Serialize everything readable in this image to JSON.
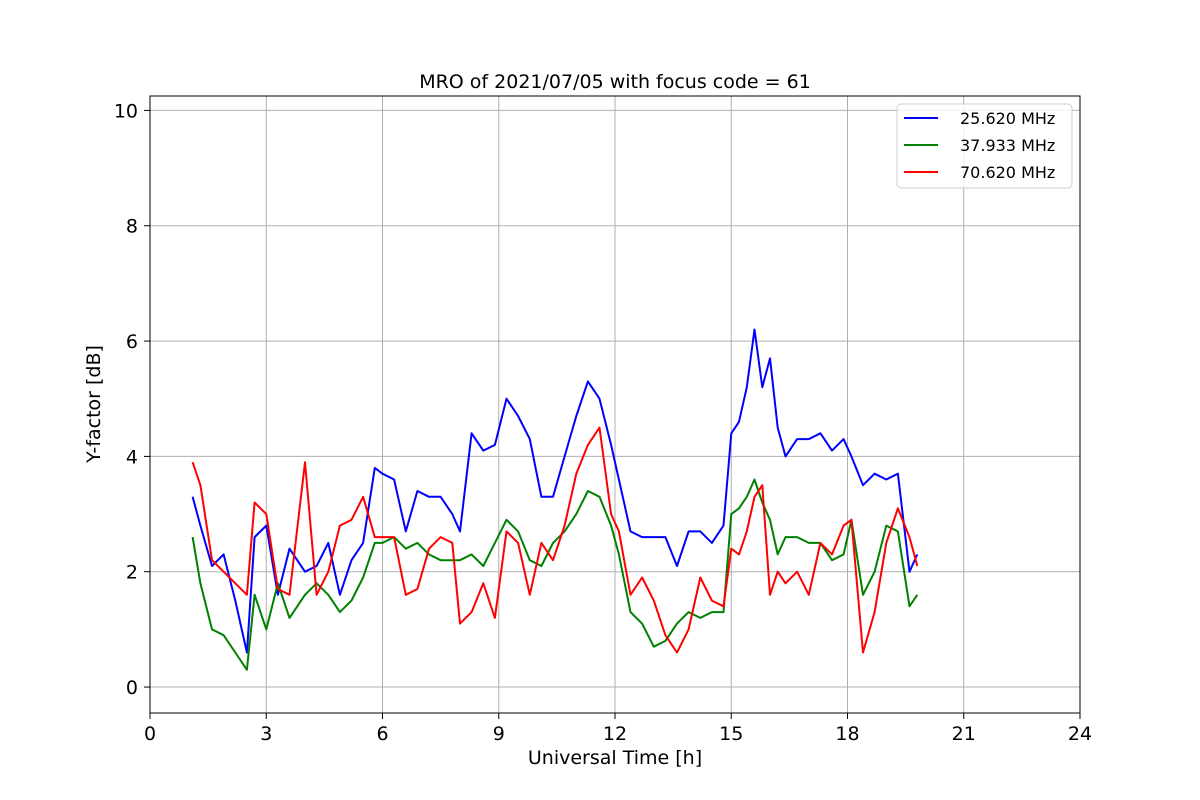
{
  "chart_data": {
    "type": "line",
    "title": "MRO of 2021/07/05 with focus code = 61",
    "xlabel": "Universal Time [h]",
    "ylabel": "Y-factor [dB]",
    "xlim": [
      0,
      24
    ],
    "ylim": [
      -0.45,
      10.25
    ],
    "xticks": [
      0,
      3,
      6,
      9,
      12,
      15,
      18,
      21,
      24
    ],
    "yticks": [
      0,
      2,
      4,
      6,
      8,
      10
    ],
    "grid": true,
    "legend_position": "top-right",
    "series": [
      {
        "name": "25.620 MHz",
        "color": "#0000ff",
        "x": [
          1.1,
          1.3,
          1.6,
          1.9,
          2.2,
          2.5,
          2.7,
          3.0,
          3.3,
          3.6,
          4.0,
          4.3,
          4.6,
          4.9,
          5.2,
          5.5,
          5.8,
          6.0,
          6.3,
          6.6,
          6.9,
          7.2,
          7.5,
          7.8,
          8.0,
          8.3,
          8.6,
          8.9,
          9.2,
          9.5,
          9.8,
          10.1,
          10.4,
          10.7,
          11.0,
          11.3,
          11.6,
          11.9,
          12.1,
          12.4,
          12.7,
          13.0,
          13.3,
          13.6,
          13.9,
          14.2,
          14.5,
          14.8,
          15.0,
          15.2,
          15.4,
          15.6,
          15.8,
          16.0,
          16.2,
          16.4,
          16.7,
          17.0,
          17.3,
          17.6,
          17.9,
          18.1,
          18.4,
          18.7,
          19.0,
          19.3,
          19.6,
          19.8
        ],
        "values": [
          3.3,
          2.8,
          2.1,
          2.3,
          1.5,
          0.6,
          2.6,
          2.8,
          1.6,
          2.4,
          2.0,
          2.1,
          2.5,
          1.6,
          2.2,
          2.5,
          3.8,
          3.7,
          3.6,
          2.7,
          3.4,
          3.3,
          3.3,
          3.0,
          2.7,
          4.4,
          4.1,
          4.2,
          5.0,
          4.7,
          4.3,
          3.3,
          3.3,
          4.0,
          4.7,
          5.3,
          5.0,
          4.2,
          3.6,
          2.7,
          2.6,
          2.6,
          2.6,
          2.1,
          2.7,
          2.7,
          2.5,
          2.8,
          4.4,
          4.6,
          5.2,
          6.2,
          5.2,
          5.7,
          4.5,
          4.0,
          4.3,
          4.3,
          4.4,
          4.1,
          4.3,
          4.0,
          3.5,
          3.7,
          3.6,
          3.7,
          2.0,
          2.3
        ]
      },
      {
        "name": "37.933 MHz",
        "color": "#008000",
        "x": [
          1.1,
          1.3,
          1.6,
          1.9,
          2.2,
          2.5,
          2.7,
          3.0,
          3.3,
          3.6,
          4.0,
          4.3,
          4.6,
          4.9,
          5.2,
          5.5,
          5.8,
          6.0,
          6.3,
          6.6,
          6.9,
          7.2,
          7.5,
          7.8,
          8.0,
          8.3,
          8.6,
          8.9,
          9.2,
          9.5,
          9.8,
          10.1,
          10.4,
          10.7,
          11.0,
          11.3,
          11.6,
          11.9,
          12.1,
          12.4,
          12.7,
          13.0,
          13.3,
          13.6,
          13.9,
          14.2,
          14.5,
          14.8,
          15.0,
          15.2,
          15.4,
          15.6,
          15.8,
          16.0,
          16.2,
          16.4,
          16.7,
          17.0,
          17.3,
          17.6,
          17.9,
          18.1,
          18.4,
          18.7,
          19.0,
          19.3,
          19.6,
          19.8
        ],
        "values": [
          2.6,
          1.8,
          1.0,
          0.9,
          0.6,
          0.3,
          1.6,
          1.0,
          1.8,
          1.2,
          1.6,
          1.8,
          1.6,
          1.3,
          1.5,
          1.9,
          2.5,
          2.5,
          2.6,
          2.4,
          2.5,
          2.3,
          2.2,
          2.2,
          2.2,
          2.3,
          2.1,
          2.5,
          2.9,
          2.7,
          2.2,
          2.1,
          2.5,
          2.7,
          3.0,
          3.4,
          3.3,
          2.8,
          2.3,
          1.3,
          1.1,
          0.7,
          0.8,
          1.1,
          1.3,
          1.2,
          1.3,
          1.3,
          3.0,
          3.1,
          3.3,
          3.6,
          3.2,
          2.9,
          2.3,
          2.6,
          2.6,
          2.5,
          2.5,
          2.2,
          2.3,
          2.9,
          1.6,
          2.0,
          2.8,
          2.7,
          1.4,
          1.6
        ]
      },
      {
        "name": "70.620 MHz",
        "color": "#ff0000",
        "x": [
          1.1,
          1.3,
          1.6,
          1.9,
          2.2,
          2.5,
          2.7,
          3.0,
          3.3,
          3.6,
          4.0,
          4.3,
          4.6,
          4.9,
          5.2,
          5.5,
          5.8,
          6.0,
          6.3,
          6.6,
          6.9,
          7.2,
          7.5,
          7.8,
          8.0,
          8.3,
          8.6,
          8.9,
          9.2,
          9.5,
          9.8,
          10.1,
          10.4,
          10.7,
          11.0,
          11.3,
          11.6,
          11.9,
          12.1,
          12.4,
          12.7,
          13.0,
          13.3,
          13.6,
          13.9,
          14.2,
          14.5,
          14.8,
          15.0,
          15.2,
          15.4,
          15.6,
          15.8,
          16.0,
          16.2,
          16.4,
          16.7,
          17.0,
          17.3,
          17.6,
          17.9,
          18.1,
          18.4,
          18.7,
          19.0,
          19.3,
          19.6,
          19.8
        ],
        "values": [
          3.9,
          3.5,
          2.2,
          2.0,
          1.8,
          1.6,
          3.2,
          3.0,
          1.7,
          1.6,
          3.9,
          1.6,
          2.0,
          2.8,
          2.9,
          3.3,
          2.6,
          2.6,
          2.6,
          1.6,
          1.7,
          2.4,
          2.6,
          2.5,
          1.1,
          1.3,
          1.8,
          1.2,
          2.7,
          2.5,
          1.6,
          2.5,
          2.2,
          2.8,
          3.7,
          4.2,
          4.5,
          3.0,
          2.7,
          1.6,
          1.9,
          1.5,
          0.9,
          0.6,
          1.0,
          1.9,
          1.5,
          1.4,
          2.4,
          2.3,
          2.7,
          3.3,
          3.5,
          1.6,
          2.0,
          1.8,
          2.0,
          1.6,
          2.5,
          2.3,
          2.8,
          2.9,
          0.6,
          1.3,
          2.5,
          3.1,
          2.6,
          2.1
        ]
      }
    ]
  }
}
